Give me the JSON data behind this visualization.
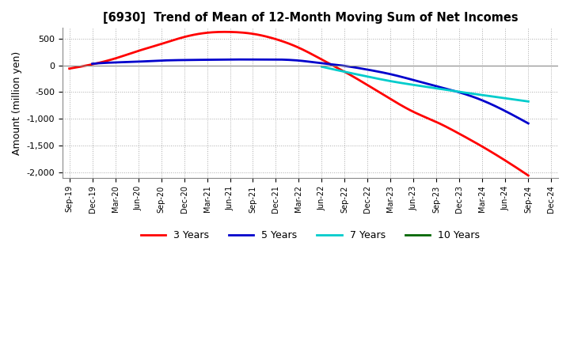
{
  "title": "[6930]  Trend of Mean of 12-Month Moving Sum of Net Incomes",
  "ylabel": "Amount (million yen)",
  "background_color": "#ffffff",
  "plot_bg_color": "#ffffff",
  "grid_color": "#aaaaaa",
  "ylim": [
    -2100,
    700
  ],
  "yticks": [
    -2000,
    -1500,
    -1000,
    -500,
    0,
    500
  ],
  "x_labels": [
    "Sep-19",
    "Dec-19",
    "Mar-20",
    "Jun-20",
    "Sep-20",
    "Dec-20",
    "Mar-21",
    "Jun-21",
    "Sep-21",
    "Dec-21",
    "Mar-22",
    "Jun-22",
    "Sep-22",
    "Dec-22",
    "Mar-23",
    "Jun-23",
    "Sep-23",
    "Dec-23",
    "Mar-24",
    "Jun-24",
    "Sep-24",
    "Dec-24"
  ],
  "series": {
    "3yr": {
      "color": "#ff0000",
      "label": "3 Years",
      "values": [
        -60,
        20,
        130,
        270,
        400,
        530,
        610,
        625,
        590,
        490,
        330,
        110,
        -120,
        -370,
        -630,
        -870,
        -1060,
        -1280,
        -1520,
        -1780,
        -2060,
        null
      ]
    },
    "5yr": {
      "color": "#0000cc",
      "label": "5 Years",
      "values": [
        null,
        30,
        55,
        70,
        90,
        100,
        105,
        110,
        110,
        110,
        90,
        40,
        -10,
        -80,
        -165,
        -275,
        -390,
        -505,
        -655,
        -855,
        -1085,
        null
      ]
    },
    "7yr": {
      "color": "#00cccc",
      "label": "7 Years",
      "values": [
        null,
        null,
        null,
        null,
        null,
        null,
        null,
        null,
        null,
        null,
        null,
        -25,
        -120,
        -210,
        -295,
        -365,
        -430,
        -495,
        -555,
        -615,
        -675,
        null
      ]
    },
    "10yr": {
      "color": "#006600",
      "label": "10 Years",
      "values": [
        null,
        null,
        null,
        null,
        null,
        null,
        null,
        null,
        null,
        null,
        null,
        null,
        null,
        null,
        null,
        null,
        null,
        null,
        null,
        null,
        null,
        null
      ]
    }
  }
}
